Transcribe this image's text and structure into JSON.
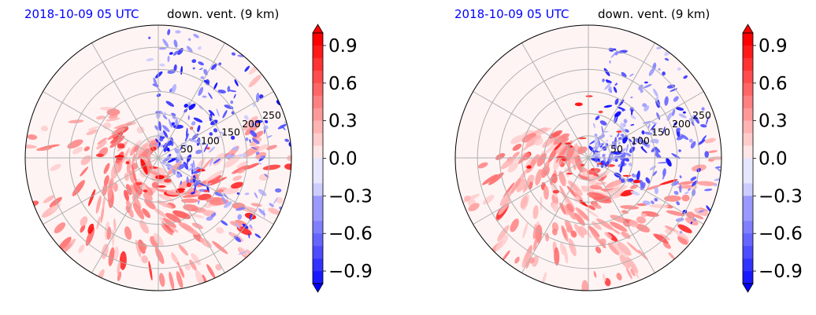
{
  "chart_data": [
    {
      "type": "heatmap",
      "projection": "polar",
      "title_time": "2018-10-09 05 UTC",
      "title_var": "down. vent. (9 km)",
      "radial_ticks": [
        50,
        100,
        150,
        200,
        250
      ],
      "rmax": 300,
      "angular_gridlines": 12,
      "grid": true,
      "colorbar": {
        "ticks": [
          0.9,
          0.6,
          0.3,
          0.0,
          -0.3,
          -0.6,
          -0.9
        ],
        "tick_labels": [
          "0.9",
          "0.6",
          "0.3",
          "0.0",
          "−0.3",
          "−0.6",
          "−0.9"
        ],
        "vmin": -1.0,
        "vmax": 1.0,
        "extend": "both",
        "low_color": "#0000ff",
        "mid_color": "#ffffff",
        "high_color": "#ff0000"
      },
      "pattern": {
        "positive_sector_deg": [
          95,
          330
        ],
        "negative_sector_deg": [
          -50,
          95
        ],
        "seed": 11
      }
    },
    {
      "type": "heatmap",
      "projection": "polar",
      "title_time": "2018-10-09 05 UTC",
      "title_var": "down. vent. (9 km)",
      "radial_ticks": [
        50,
        100,
        150,
        200,
        250
      ],
      "rmax": 300,
      "angular_gridlines": 12,
      "grid": true,
      "colorbar": {
        "ticks": [
          0.9,
          0.6,
          0.3,
          0.0,
          -0.3,
          -0.6,
          -0.9
        ],
        "tick_labels": [
          "0.9",
          "0.6",
          "0.3",
          "0.0",
          "−0.3",
          "−0.6",
          "−0.9"
        ],
        "vmin": -1.0,
        "vmax": 1.0,
        "extend": "both",
        "low_color": "#0000ff",
        "mid_color": "#ffffff",
        "high_color": "#ff0000"
      },
      "pattern": {
        "positive_sector_deg": [
          120,
          300
        ],
        "negative_sector_deg": [
          -40,
          80
        ],
        "seed": 29
      }
    }
  ],
  "colors": {
    "title_time": "#0000ff",
    "title_var": "#000000",
    "grid": "#b0b0b0"
  }
}
